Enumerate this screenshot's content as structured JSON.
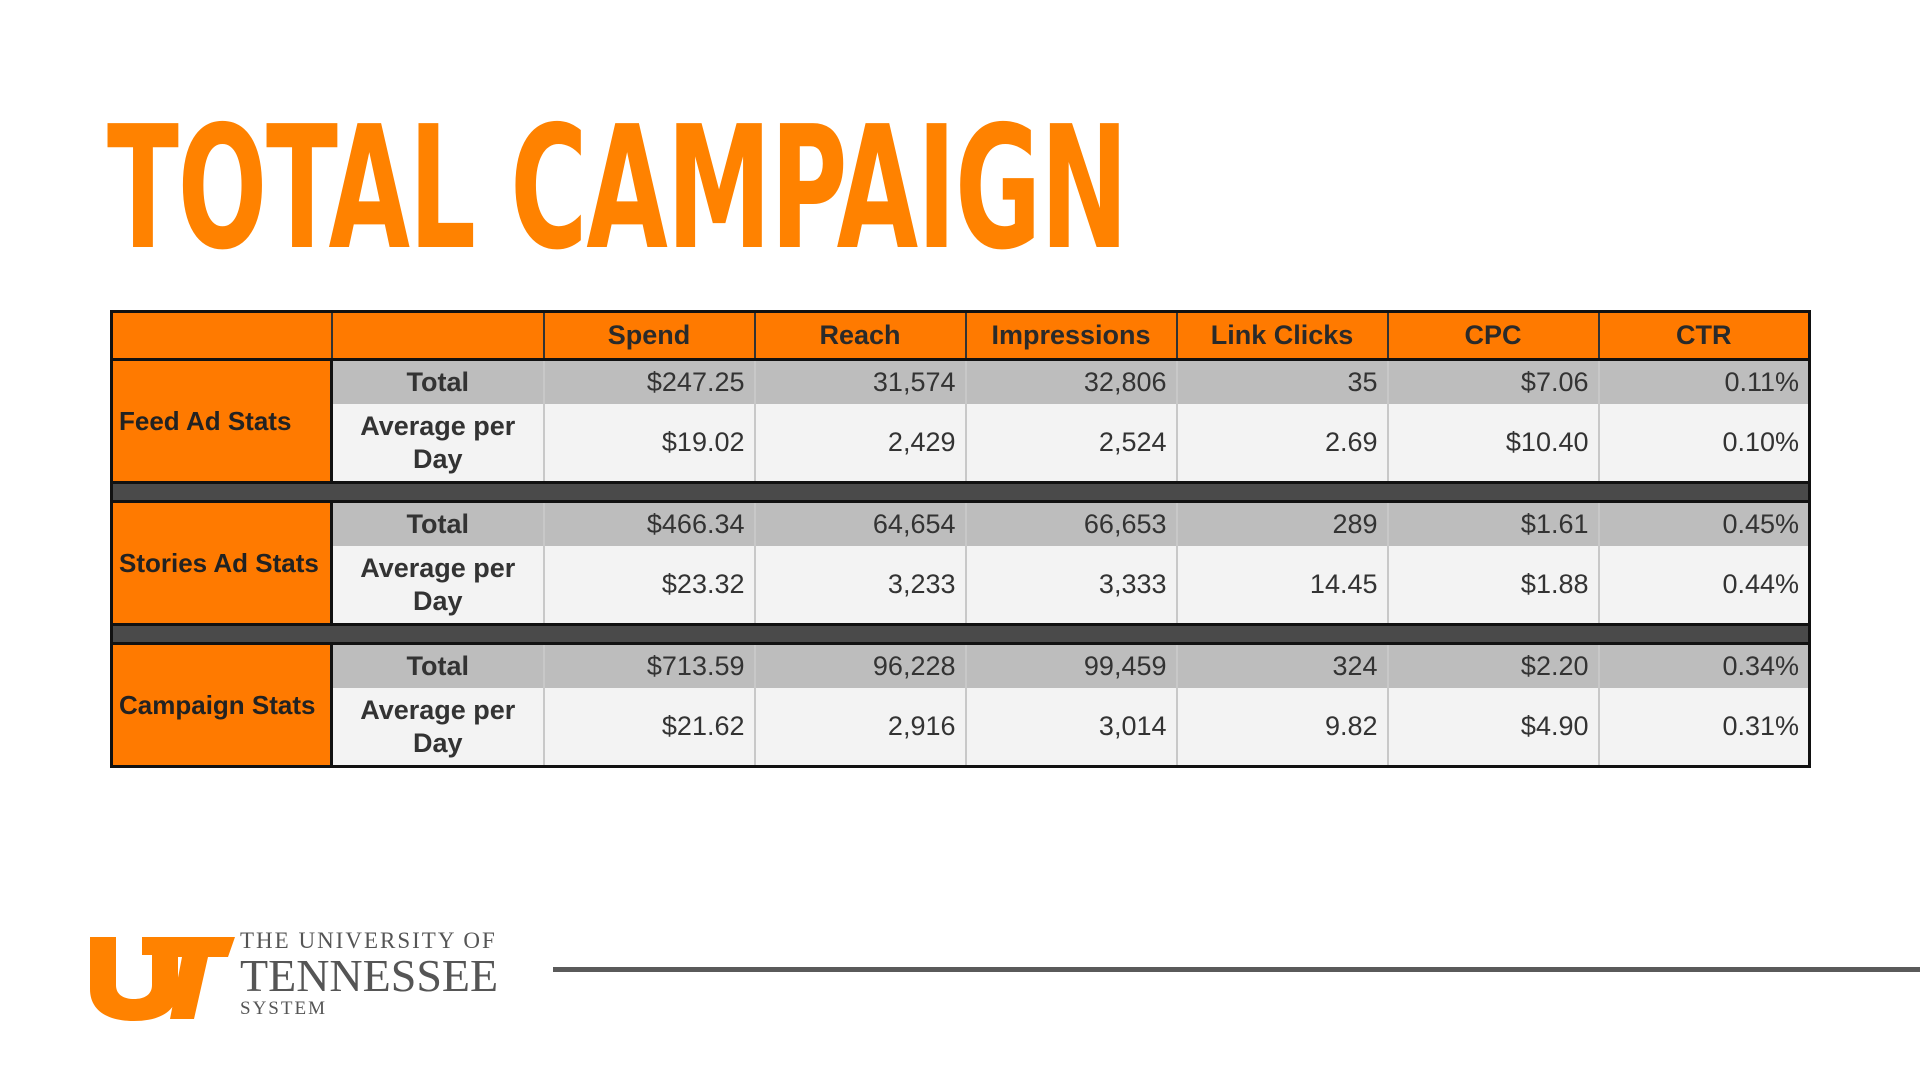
{
  "title": "TOTAL CAMPAIGN",
  "table": {
    "headers": [
      "",
      "",
      "Spend",
      "Reach",
      "Impressions",
      "Link Clicks",
      "CPC",
      "CTR"
    ],
    "groups": [
      {
        "name": "Feed Ad Stats",
        "rows": [
          {
            "label": "Total",
            "values": [
              "$247.25",
              "31,574",
              "32,806",
              "35",
              "$7.06",
              "0.11%"
            ]
          },
          {
            "label": "Average per Day",
            "values": [
              "$19.02",
              "2,429",
              "2,524",
              "2.69",
              "$10.40",
              "0.10%"
            ]
          }
        ]
      },
      {
        "name": "Stories Ad Stats",
        "rows": [
          {
            "label": "Total",
            "values": [
              "$466.34",
              "64,654",
              "66,653",
              "289",
              "$1.61",
              "0.45%"
            ]
          },
          {
            "label": "Average per Day",
            "values": [
              "$23.32",
              "3,233",
              "3,333",
              "14.45",
              "$1.88",
              "0.44%"
            ]
          }
        ]
      },
      {
        "name": "Campaign Stats",
        "rows": [
          {
            "label": "Total",
            "values": [
              "$713.59",
              "96,228",
              "99,459",
              "324",
              "$2.20",
              "0.34%"
            ]
          },
          {
            "label": "Average per Day",
            "values": [
              "$21.62",
              "2,916",
              "3,014",
              "9.82",
              "$4.90",
              "0.31%"
            ]
          }
        ]
      }
    ]
  },
  "logo": {
    "line1": "THE UNIVERSITY OF",
    "line2": "TENNESSEE",
    "line3": "SYSTEM"
  },
  "colors": {
    "accent": "#FF8200",
    "header_fill": "#FF7A00",
    "total_row": "#BDBDBD",
    "avg_row": "#F3F3F3",
    "separator": "#4A4A4A"
  }
}
